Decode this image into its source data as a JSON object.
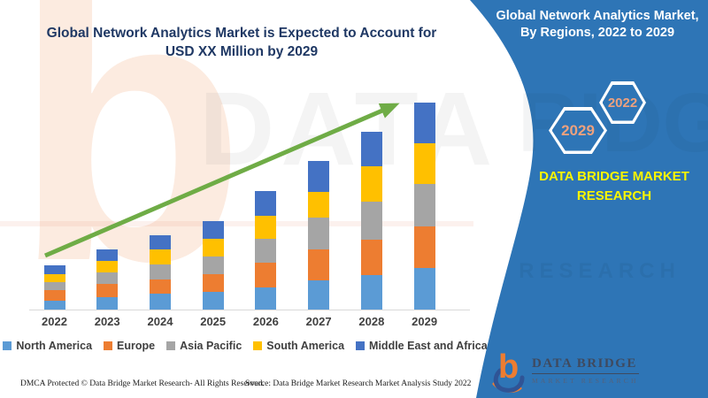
{
  "watermarks": {
    "b_glyph": "b",
    "big_text": "DATA BRIDGE",
    "panel_big_text": "RIDGE",
    "panel_small_text": "RESEARCH"
  },
  "main": {
    "title_line1": "Global Network Analytics Market is Expected to Account for",
    "title_line2": "USD XX Million by 2029",
    "footer_left": "DMCA Protected © Data Bridge Market Research- All Rights Reserved.",
    "footer_source": "Source: Data Bridge Market Research Market Analysis Study 2022"
  },
  "panel": {
    "title": "Global Network Analytics Market, By Regions, 2022 to 2029",
    "hexagons": [
      {
        "label": "2029"
      },
      {
        "label": "2022"
      }
    ],
    "brand_caption": "DATA BRIDGE MARKET RESEARCH",
    "logo_glyph": "b",
    "logo_title": "DATA BRIDGE",
    "logo_subtitle": "MARKET RESEARCH",
    "colors": {
      "panel_blue": "#2E75B6",
      "hex_label": "#EDA17E",
      "brand_yellow": "#FAF500",
      "title_white": "#FFFFFF"
    }
  },
  "chart_data": {
    "type": "bar",
    "stacked": true,
    "title": "Global Network Analytics Market is Expected to Account for USD XX Million by 2029",
    "xlabel": "",
    "ylabel": "",
    "categories": [
      "2022",
      "2023",
      "2024",
      "2025",
      "2026",
      "2027",
      "2028",
      "2029"
    ],
    "series": [
      {
        "name": "North America",
        "color": "#5B9BD5",
        "values": [
          10,
          14,
          18,
          20,
          25,
          33,
          39,
          47
        ]
      },
      {
        "name": "Europe",
        "color": "#ED7D31",
        "values": [
          12,
          15,
          16,
          20,
          28,
          35,
          40,
          47
        ]
      },
      {
        "name": "Asia Pacific",
        "color": "#A5A5A5",
        "values": [
          9,
          13,
          17,
          20,
          27,
          36,
          43,
          48
        ]
      },
      {
        "name": "South America",
        "color": "#FFC000",
        "values": [
          9,
          13,
          17,
          20,
          26,
          29,
          40,
          46
        ]
      },
      {
        "name": "Middle East and Africa",
        "color": "#4472C4",
        "values": [
          10,
          13,
          16,
          20,
          28,
          35,
          39,
          46
        ]
      }
    ],
    "totals": [
      50,
      68,
      84,
      100,
      134,
      168,
      201,
      234
    ],
    "ylim": [
      0,
      250
    ],
    "value_axis_visible": false,
    "grid": false,
    "legend_position": "bottom",
    "trend_arrow": {
      "from_category": "2022",
      "to_category": "2029",
      "color": "#6FAC46"
    }
  }
}
